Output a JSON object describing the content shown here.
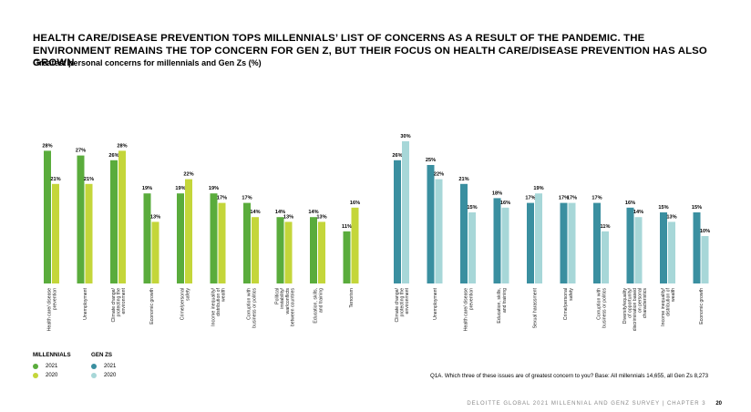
{
  "headline": "HEALTH CARE/DISEASE PREVENTION TOPS MILLENNIALS’ LIST OF CONCERNS AS A RESULT OF THE PANDEMIC. THE ENVIRONMENT REMAINS THE TOP CONCERN FOR GEN Z, BUT THEIR FOCUS ON HEALTH CARE/DISEASE PREVENTION HAS ALSO GROWN",
  "subtitle": "Greatest personal concerns for millennials and Gen Zs (%)",
  "colors": {
    "millennials_2021": "#5aac3c",
    "millennials_2020": "#c4d63a",
    "genz_2021": "#3a8fa0",
    "genz_2020": "#a7d7d8"
  },
  "chart_data": [
    {
      "type": "bar",
      "group": "Millennials",
      "categories": [
        "Health care/ disease prevention",
        "Unemployment",
        "Climate change/ protecting the environment",
        "Economic growth",
        "Crime/personal safety",
        "Income inequality/ distribution of wealth",
        "Corruption with business or politics",
        "Political instability/ war/conflicts between countries",
        "Education, skills, and training",
        "Terrorism"
      ],
      "series": [
        {
          "name": "2021",
          "values": [
            28,
            27,
            26,
            19,
            19,
            19,
            17,
            14,
            14,
            11
          ]
        },
        {
          "name": "2020",
          "values": [
            21,
            21,
            28,
            13,
            22,
            17,
            14,
            13,
            13,
            16
          ]
        }
      ],
      "ylim": [
        0,
        30
      ]
    },
    {
      "type": "bar",
      "group": "Gen Zs",
      "categories": [
        "Climate change/ protecting the environment",
        "Unemployment",
        "Health care/ disease prevention",
        "Education, skills, and training",
        "Sexual harassment",
        "Crime/personal safety",
        "Corruption with business or politics",
        "Diversity/equality of opportunity/ discrimination based on personal characteristics",
        "Income inequality/ distribution of wealth",
        "Economic growth"
      ],
      "series": [
        {
          "name": "2021",
          "values": [
            26,
            25,
            21,
            18,
            17,
            17,
            17,
            16,
            15,
            15
          ]
        },
        {
          "name": "2020",
          "values": [
            30,
            22,
            15,
            16,
            19,
            17,
            11,
            14,
            13,
            10
          ]
        }
      ],
      "ylim": [
        0,
        30
      ]
    }
  ],
  "legend": {
    "millennials_title": "MILLENNIALS",
    "genz_title": "GEN ZS",
    "year_2021": "2021",
    "year_2020": "2020"
  },
  "note": "Q1A. Which three of these issues are of greatest concern to you? Base: All millennials 14,655, all Gen Zs 8,273",
  "footer": {
    "text": "DELOITTE GLOBAL 2021 MILLENNIAL AND GENZ SURVEY | CHAPTER 3",
    "page": "20"
  }
}
